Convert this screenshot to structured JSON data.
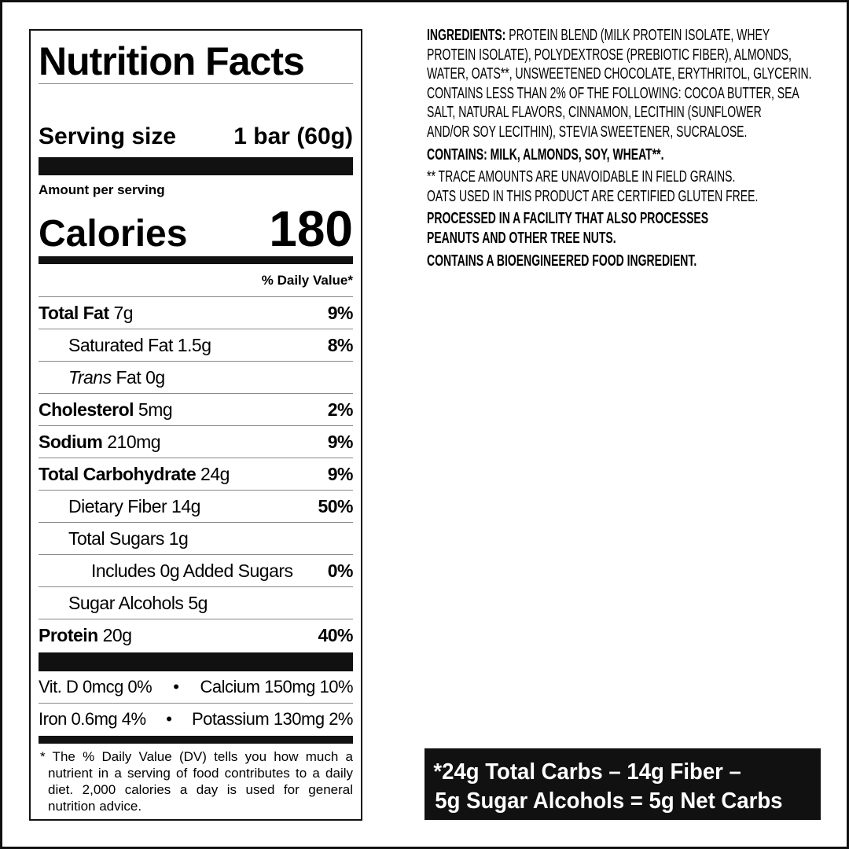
{
  "label": {
    "title": "Nutrition Facts",
    "serving_label": "Serving size",
    "serving_value": "1 bar (60g)",
    "amount_per_serving": "Amount per serving",
    "calories_label": "Calories",
    "calories_value": "180",
    "dv_header": "% Daily Value*",
    "rows": [
      {
        "name": "Total Fat",
        "amount": "7g",
        "dv": "9%"
      },
      {
        "name": "Saturated Fat",
        "amount": "1.5g",
        "dv": "8%"
      },
      {
        "name": "Trans",
        "name_rest": "Fat",
        "amount": "0g",
        "dv": ""
      },
      {
        "name": "Cholesterol",
        "amount": "5mg",
        "dv": "2%"
      },
      {
        "name": "Sodium",
        "amount": "210mg",
        "dv": "9%"
      },
      {
        "name": "Total Carbohydrate",
        "amount": "24g",
        "dv": "9%"
      },
      {
        "name": "Dietary Fiber",
        "amount": "14g",
        "dv": "50%"
      },
      {
        "name": "Total Sugars",
        "amount": "1g",
        "dv": ""
      },
      {
        "name": "Includes 0g Added Sugars",
        "amount": "",
        "dv": "0%"
      },
      {
        "name": "Sugar Alcohols",
        "amount": "5g",
        "dv": ""
      },
      {
        "name": "Protein",
        "amount": "20g",
        "dv": "40%"
      }
    ],
    "vitamins": [
      {
        "left": "Vit. D 0mcg 0%",
        "right": "Calcium 150mg 10%"
      },
      {
        "left": "Iron 0.6mg 4%",
        "right": "Potassium 130mg 2%"
      }
    ],
    "bullet": "•",
    "footnote": "* The % Daily Value (DV) tells you how much a nutrient in a serving of food contributes to a daily diet. 2,000 calories a day is used for general nutrition advice."
  },
  "ingredients": {
    "heading": "INGREDIENTS:",
    "lines": [
      "PROTEIN BLEND (MILK PROTEIN ISOLATE, WHEY",
      "PROTEIN ISOLATE), POLYDEXTROSE (PREBIOTIC FIBER), ALMONDS,",
      "WATER, OATS**, UNSWEETENED CHOCOLATE, ERYTHRITOL, GLYCERIN.",
      "CONTAINS LESS THAN 2% OF THE FOLLOWING: COCOA BUTTER, SEA",
      "SALT, NATURAL FLAVORS, CINNAMON, LECITHIN (SUNFLOWER",
      "AND/OR SOY LECITHIN), STEVIA SWEETENER, SUCRALOSE."
    ],
    "contains": "CONTAINS: MILK, ALMONDS, SOY, WHEAT**.",
    "trace_lines": [
      "** TRACE AMOUNTS ARE UNAVOIDABLE IN FIELD GRAINS.",
      "OATS USED IN THIS PRODUCT ARE CERTIFIED GLUTEN FREE."
    ],
    "facility_lines": [
      "PROCESSED IN A FACILITY THAT ALSO PROCESSES",
      "PEANUTS AND OTHER TREE NUTS."
    ],
    "bioengineered": "CONTAINS A BIOENGINEERED FOOD INGREDIENT."
  },
  "net_carbs": {
    "line1": "*24g Total Carbs – 14g Fiber –",
    "line2": "5g Sugar Alcohols = 5g Net Carbs"
  }
}
